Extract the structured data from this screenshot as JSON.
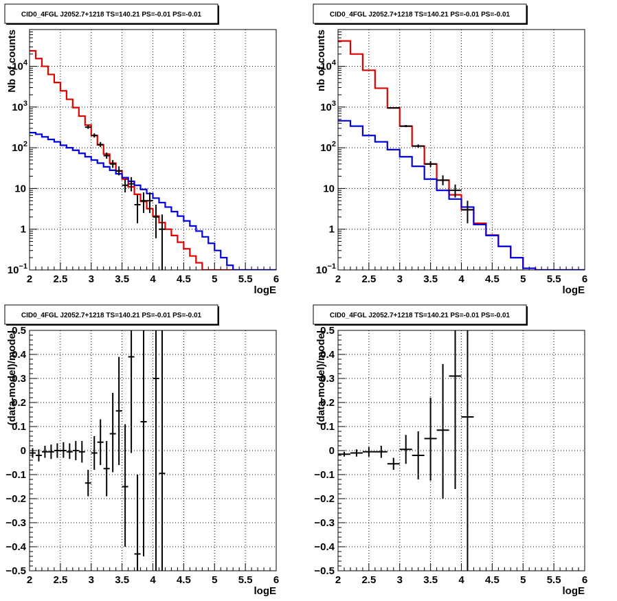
{
  "chart_data": [
    {
      "type": "line",
      "panel": "top-left",
      "title": "CID0_4FGL J2052.7+1218 TS=140.21 PS=-0.01 PS=-0.01",
      "xlabel": "logE",
      "ylabel": "Nb of counts",
      "yscale": "log",
      "xlim": [
        2,
        6
      ],
      "ylim": [
        0.1,
        80000
      ],
      "xticks": [
        "2",
        "2.5",
        "3",
        "3.5",
        "4",
        "4.5",
        "5",
        "5.5",
        "6"
      ],
      "yticks": [
        {
          "value": 0.1,
          "label": "10",
          "sup": "−1"
        },
        {
          "value": 1,
          "label": "1",
          "sup": ""
        },
        {
          "value": 10,
          "label": "10",
          "sup": ""
        },
        {
          "value": 100,
          "label": "10",
          "sup": "2"
        },
        {
          "value": 1000,
          "label": "10",
          "sup": "3"
        },
        {
          "value": 10000,
          "label": "10",
          "sup": "4"
        }
      ],
      "grid": true,
      "bin_edges": [
        2,
        2.1,
        2.2,
        2.3,
        2.4,
        2.5,
        2.6,
        2.7,
        2.8,
        2.9,
        3.0,
        3.1,
        3.2,
        3.3,
        3.4,
        3.5,
        3.6,
        3.7,
        3.8,
        3.9,
        4.0,
        4.1,
        4.2,
        4.3,
        4.4,
        4.5,
        4.6,
        4.7,
        4.8,
        4.9,
        5.0,
        5.1,
        5.2,
        5.3,
        5.4,
        5.5,
        5.6,
        5.7,
        5.8,
        5.9,
        6.0
      ],
      "series": [
        {
          "color": "#e00000",
          "kind": "step",
          "values": [
            24000,
            15500,
            10000,
            6300,
            4000,
            2500,
            1550,
            970,
            600,
            360,
            200,
            118,
            70,
            42,
            27,
            17,
            11,
            7.2,
            4.8,
            3.2,
            2.1,
            1.45,
            1.0,
            0.7,
            0.48,
            0.33,
            0.22,
            0.15,
            0.1,
            0.1,
            0.1,
            0.1,
            0.1,
            0.1,
            0.1,
            0.1,
            0.1,
            0.1,
            0.1,
            0.1
          ]
        },
        {
          "color": "#0000e0",
          "kind": "step",
          "values": [
            235,
            215,
            185,
            160,
            140,
            115,
            100,
            87,
            73,
            60,
            50,
            42,
            34,
            28,
            23,
            18.5,
            15,
            12,
            9.5,
            7.5,
            5.8,
            4.5,
            3.5,
            2.7,
            2.1,
            1.6,
            1.2,
            0.9,
            0.65,
            0.45,
            0.3,
            0.2,
            0.13,
            0.1,
            0.1,
            0.1,
            0.1,
            0.1,
            0.1,
            0.1
          ]
        },
        {
          "color": "#000000",
          "kind": "points",
          "points": [
            {
              "x": 2.95,
              "y": 320,
              "lo": 290,
              "hi": 355
            },
            {
              "x": 3.05,
              "y": 200,
              "lo": 178,
              "hi": 225
            },
            {
              "x": 3.15,
              "y": 120,
              "lo": 104,
              "hi": 138
            },
            {
              "x": 3.25,
              "y": 64,
              "lo": 54,
              "hi": 76
            },
            {
              "x": 3.35,
              "y": 40,
              "lo": 32,
              "hi": 50
            },
            {
              "x": 3.45,
              "y": 27,
              "lo": 21,
              "hi": 35
            },
            {
              "x": 3.55,
              "y": 12,
              "lo": 8,
              "hi": 17
            },
            {
              "x": 3.65,
              "y": 13,
              "lo": 8.5,
              "hi": 19
            },
            {
              "x": 3.75,
              "y": 4.0,
              "lo": 1.4,
              "hi": 7
            },
            {
              "x": 3.85,
              "y": 5.0,
              "lo": 2.5,
              "hi": 8
            },
            {
              "x": 3.95,
              "y": 5.0,
              "lo": 2.5,
              "hi": 8
            },
            {
              "x": 4.05,
              "y": 2.0,
              "lo": 0.6,
              "hi": 4
            },
            {
              "x": 4.15,
              "y": 1.0,
              "lo": 0.1,
              "hi": 2.3
            }
          ]
        }
      ]
    },
    {
      "type": "line",
      "panel": "top-right",
      "title": "CID0_4FGL J2052.7+1218 TS=140.21 PS=-0.01 PS=-0.01",
      "xlabel": "logE",
      "ylabel": "nb of counts",
      "yscale": "log",
      "xlim": [
        2,
        6
      ],
      "ylim": [
        0.1,
        80000
      ],
      "xticks": [
        "2",
        "2.5",
        "3",
        "3.5",
        "4",
        "4.5",
        "5",
        "5.5",
        "6"
      ],
      "yticks": [
        {
          "value": 0.1,
          "label": "10",
          "sup": "−1"
        },
        {
          "value": 1,
          "label": "1",
          "sup": ""
        },
        {
          "value": 10,
          "label": "10",
          "sup": ""
        },
        {
          "value": 100,
          "label": "10",
          "sup": "2"
        },
        {
          "value": 1000,
          "label": "10",
          "sup": "3"
        },
        {
          "value": 10000,
          "label": "10",
          "sup": "4"
        }
      ],
      "grid": true,
      "bin_edges": [
        2,
        2.2,
        2.4,
        2.6,
        2.8,
        3.0,
        3.2,
        3.4,
        3.6,
        3.8,
        4.0,
        4.2,
        4.4,
        4.6,
        4.8,
        5.0,
        5.2,
        5.4,
        5.6,
        5.8,
        6.0
      ],
      "series": [
        {
          "color": "#e00000",
          "kind": "step",
          "values": [
            42000,
            20000,
            8000,
            2900,
            950,
            340,
            110,
            40,
            16,
            7.0,
            3.0,
            1.4,
            0.72,
            0.38,
            0.2,
            0.11,
            0.1,
            0.1,
            0.1,
            0.1
          ]
        },
        {
          "color": "#0000e0",
          "kind": "step",
          "values": [
            460,
            340,
            200,
            140,
            90,
            60,
            35,
            17,
            9,
            5.5,
            3.5,
            1.3,
            0.7,
            0.38,
            0.2,
            0.11,
            0.1,
            0.1,
            0.1,
            0.1
          ]
        },
        {
          "color": "#000000",
          "kind": "points",
          "points": [
            {
              "x": 2.9,
              "y": 950,
              "lo": 915,
              "hi": 985
            },
            {
              "x": 3.1,
              "y": 340,
              "lo": 320,
              "hi": 362
            },
            {
              "x": 3.3,
              "y": 110,
              "lo": 100,
              "hi": 121
            },
            {
              "x": 3.5,
              "y": 40,
              "lo": 34,
              "hi": 47
            },
            {
              "x": 3.7,
              "y": 16,
              "lo": 12,
              "hi": 21
            },
            {
              "x": 3.9,
              "y": 9.0,
              "lo": 6,
              "hi": 12.5
            },
            {
              "x": 4.1,
              "y": 3.0,
              "lo": 1.4,
              "hi": 5
            }
          ]
        }
      ]
    },
    {
      "type": "scatter",
      "panel": "bottom-left",
      "title": "CID0_4FGL J2052.7+1218 TS=140.21 PS=-0.01 PS=-0.01",
      "xlabel": "logE",
      "ylabel": "(data-model)/model",
      "yscale": "linear",
      "xlim": [
        2,
        6
      ],
      "ylim": [
        -0.5,
        0.5
      ],
      "xticks": [
        "2",
        "2.5",
        "3",
        "3.5",
        "4",
        "4.5",
        "5",
        "5.5",
        "6"
      ],
      "yticks": [
        {
          "value": -0.5,
          "label": "−0.5"
        },
        {
          "value": -0.4,
          "label": "−0.4"
        },
        {
          "value": -0.3,
          "label": "−0.3"
        },
        {
          "value": -0.2,
          "label": "−0.2"
        },
        {
          "value": -0.1,
          "label": "−0.1"
        },
        {
          "value": 0,
          "label": "0"
        },
        {
          "value": 0.1,
          "label": "0.1"
        },
        {
          "value": 0.2,
          "label": "0.2"
        },
        {
          "value": 0.3,
          "label": "0.3"
        },
        {
          "value": 0.4,
          "label": "0.4"
        },
        {
          "value": 0.5,
          "label": "0.5"
        }
      ],
      "grid": true,
      "series": [
        {
          "color": "#000000",
          "kind": "points",
          "xerr": 0.05,
          "points": [
            {
              "x": 2.05,
              "y": -0.01,
              "lo": -0.03,
              "hi": 0.01
            },
            {
              "x": 2.15,
              "y": -0.02,
              "lo": -0.045,
              "hi": 0.005
            },
            {
              "x": 2.25,
              "y": -0.005,
              "lo": -0.03,
              "hi": 0.02
            },
            {
              "x": 2.35,
              "y": -0.005,
              "lo": -0.035,
              "hi": 0.025
            },
            {
              "x": 2.45,
              "y": 0.0,
              "lo": -0.03,
              "hi": 0.03
            },
            {
              "x": 2.55,
              "y": 0.0,
              "lo": -0.03,
              "hi": 0.035
            },
            {
              "x": 2.65,
              "y": -0.005,
              "lo": -0.035,
              "hi": 0.03
            },
            {
              "x": 2.75,
              "y": 0.0,
              "lo": -0.04,
              "hi": 0.04
            },
            {
              "x": 2.85,
              "y": -0.005,
              "lo": -0.05,
              "hi": 0.04
            },
            {
              "x": 2.95,
              "y": -0.135,
              "lo": -0.19,
              "hi": -0.08
            },
            {
              "x": 3.05,
              "y": -0.01,
              "lo": -0.08,
              "hi": 0.06
            },
            {
              "x": 3.15,
              "y": 0.035,
              "lo": -0.06,
              "hi": 0.13
            },
            {
              "x": 3.25,
              "y": -0.075,
              "lo": -0.19,
              "hi": 0.04
            },
            {
              "x": 3.35,
              "y": 0.07,
              "lo": -0.09,
              "hi": 0.24
            },
            {
              "x": 3.45,
              "y": 0.165,
              "lo": -0.06,
              "hi": 0.39
            },
            {
              "x": 3.55,
              "y": -0.15,
              "lo": -0.4,
              "hi": 0.11
            },
            {
              "x": 3.65,
              "y": 0.39,
              "lo": -0.01,
              "hi": 0.5
            },
            {
              "x": 3.75,
              "y": -0.43,
              "lo": -0.5,
              "hi": -0.1
            },
            {
              "x": 3.85,
              "y": 0.12,
              "lo": -0.44,
              "hi": 0.5
            },
            {
              "x": 4.05,
              "y": 0.3,
              "lo": -0.5,
              "hi": 0.5
            },
            {
              "x": 4.15,
              "y": -0.095,
              "lo": -0.5,
              "hi": 0.5
            }
          ]
        }
      ]
    },
    {
      "type": "scatter",
      "panel": "bottom-right",
      "title": "CID0_4FGL J2052.7+1218 TS=140.21 PS=-0.01 PS=-0.01",
      "xlabel": "logE",
      "ylabel": "(data-model)/model",
      "yscale": "linear",
      "xlim": [
        2,
        6
      ],
      "ylim": [
        -0.5,
        0.5
      ],
      "xticks": [
        "2",
        "2.5",
        "3",
        "3.5",
        "4",
        "4.5",
        "5",
        "5.5",
        "6"
      ],
      "yticks": [
        {
          "value": -0.5,
          "label": "−0.5"
        },
        {
          "value": -0.4,
          "label": "−0.4"
        },
        {
          "value": -0.3,
          "label": "−0.3"
        },
        {
          "value": -0.2,
          "label": "−0.2"
        },
        {
          "value": -0.1,
          "label": "−0.1"
        },
        {
          "value": 0,
          "label": "0"
        },
        {
          "value": 0.1,
          "label": "0.1"
        },
        {
          "value": 0.2,
          "label": "0.2"
        },
        {
          "value": 0.3,
          "label": "0.3"
        },
        {
          "value": 0.4,
          "label": "0.4"
        },
        {
          "value": 0.5,
          "label": "0.5"
        }
      ],
      "grid": true,
      "series": [
        {
          "color": "#000000",
          "kind": "points",
          "xerr": 0.1,
          "points": [
            {
              "x": 2.1,
              "y": -0.015,
              "lo": -0.025,
              "hi": -0.005
            },
            {
              "x": 2.3,
              "y": -0.01,
              "lo": -0.025,
              "hi": 0.005
            },
            {
              "x": 2.5,
              "y": -0.005,
              "lo": -0.025,
              "hi": 0.015
            },
            {
              "x": 2.7,
              "y": -0.005,
              "lo": -0.03,
              "hi": 0.02
            },
            {
              "x": 2.9,
              "y": -0.055,
              "lo": -0.08,
              "hi": -0.03
            },
            {
              "x": 3.1,
              "y": 0.005,
              "lo": -0.055,
              "hi": 0.065
            },
            {
              "x": 3.3,
              "y": -0.02,
              "lo": -0.12,
              "hi": 0.08
            },
            {
              "x": 3.5,
              "y": 0.05,
              "lo": -0.125,
              "hi": 0.22
            },
            {
              "x": 3.7,
              "y": 0.085,
              "lo": -0.2,
              "hi": 0.36
            },
            {
              "x": 3.9,
              "y": 0.31,
              "lo": -0.16,
              "hi": 0.5
            },
            {
              "x": 4.1,
              "y": 0.14,
              "lo": -0.5,
              "hi": 0.5
            }
          ]
        }
      ]
    }
  ]
}
